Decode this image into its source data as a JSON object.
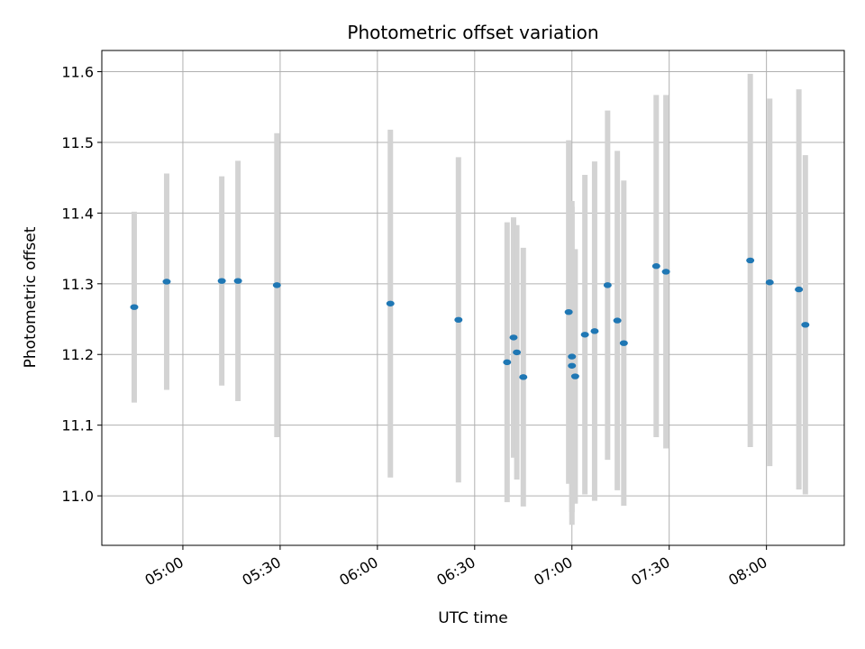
{
  "chart_data": {
    "type": "scatter",
    "title": "Photometric offset variation",
    "xlabel": "UTC time",
    "ylabel": "Photometric offset",
    "x_unit": "time_of_day",
    "xlim": [
      "04:35",
      "08:24"
    ],
    "ylim": [
      10.93,
      11.63
    ],
    "x_ticks": [
      "05:00",
      "05:30",
      "06:00",
      "06:30",
      "07:00",
      "07:30",
      "08:00"
    ],
    "y_ticks": [
      11.0,
      11.1,
      11.2,
      11.3,
      11.4,
      11.5,
      11.6
    ],
    "grid": true,
    "legend": "none",
    "colors": {
      "point": "#1f77b4",
      "errorbar": "#d3d3d3",
      "grid": "#b0b0b0"
    },
    "series": [
      {
        "x": [
          "04:45",
          "04:55",
          "05:12",
          "05:17",
          "05:29",
          "06:04",
          "06:25",
          "06:40",
          "06:42",
          "06:43",
          "06:45",
          "06:59",
          "07:00",
          "07:00",
          "07:01",
          "07:04",
          "07:07",
          "07:11",
          "07:14",
          "07:16",
          "07:26",
          "07:29",
          "07:55",
          "08:01",
          "08:10",
          "08:12"
        ],
        "y": [
          11.267,
          11.303,
          11.304,
          11.304,
          11.298,
          11.272,
          11.249,
          11.189,
          11.224,
          11.203,
          11.168,
          11.26,
          11.184,
          11.197,
          11.169,
          11.228,
          11.233,
          11.298,
          11.248,
          11.216,
          11.325,
          11.317,
          11.333,
          11.302,
          11.292,
          11.242
        ],
        "err": [
          0.135,
          0.153,
          0.148,
          0.17,
          0.215,
          0.246,
          0.23,
          0.198,
          0.17,
          0.18,
          0.183,
          0.243,
          0.225,
          0.22,
          0.18,
          0.226,
          0.24,
          0.247,
          0.24,
          0.23,
          0.242,
          0.25,
          0.264,
          0.26,
          0.283,
          0.24
        ]
      }
    ]
  }
}
